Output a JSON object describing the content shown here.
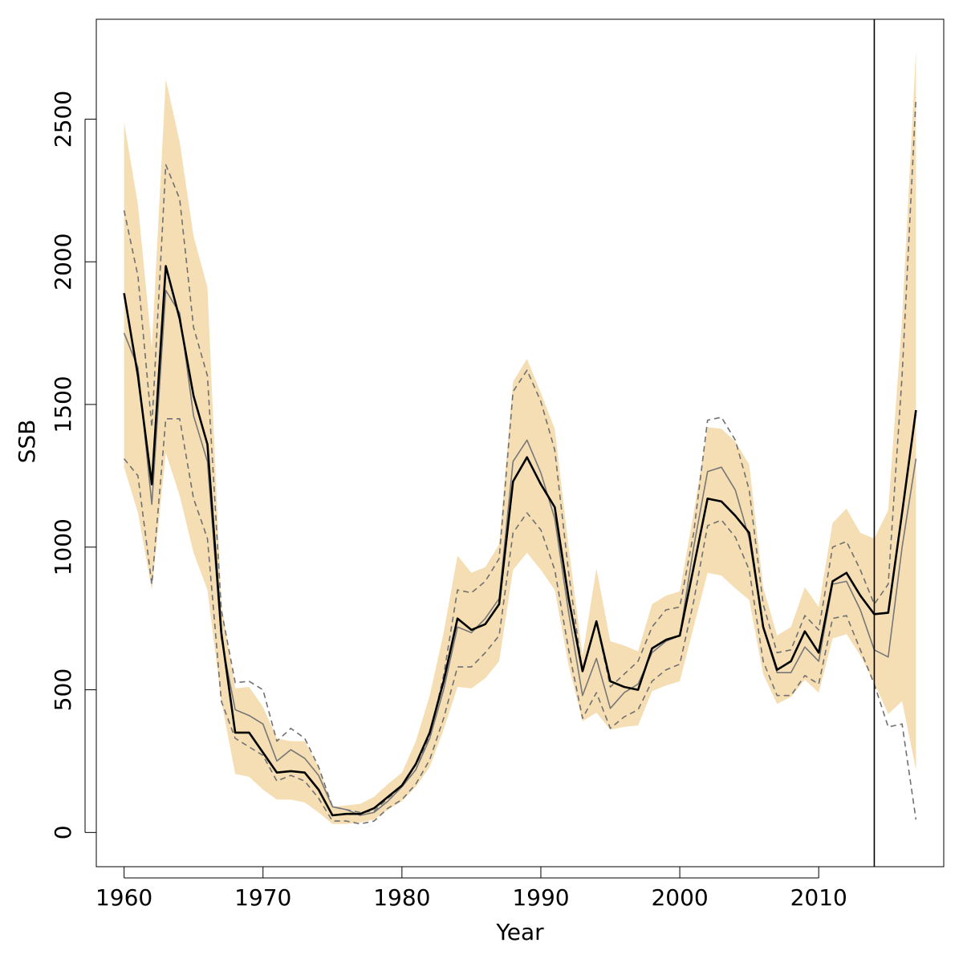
{
  "chart_data": {
    "type": "line",
    "title": "",
    "xlabel": "Year",
    "ylabel": "SSB",
    "xlim": [
      1958,
      2019
    ],
    "ylim": [
      -120,
      2850
    ],
    "x_ticks": [
      "1960",
      "1970",
      "1980",
      "1990",
      "2000",
      "2010"
    ],
    "y_ticks": [
      "0",
      "500",
      "1000",
      "1500",
      "2000",
      "2500"
    ],
    "vline_x": 2014,
    "grid": false,
    "legend": "none",
    "colors": {
      "band": "#f5deb3",
      "main": "#000000",
      "alt": "#777777",
      "dashed": "#707070",
      "vline": "#000000",
      "axis": "#000000"
    },
    "x": [
      1960,
      1961,
      1962,
      1963,
      1964,
      1965,
      1966,
      1967,
      1968,
      1969,
      1970,
      1971,
      1972,
      1973,
      1974,
      1975,
      1976,
      1977,
      1978,
      1979,
      1980,
      1981,
      1982,
      1983,
      1984,
      1985,
      1986,
      1987,
      1988,
      1989,
      1990,
      1991,
      1992,
      1993,
      1994,
      1995,
      1996,
      1997,
      1998,
      1999,
      2000,
      2001,
      2002,
      2003,
      2004,
      2005,
      2006,
      2007,
      2008,
      2009,
      2010,
      2011,
      2012,
      2013,
      2014,
      2015,
      2016,
      2017
    ],
    "series": [
      {
        "values": [
          1890,
          1600,
          1220,
          1985,
          1800,
          1530,
          1360,
          700,
          350,
          350,
          280,
          210,
          215,
          210,
          150,
          60,
          65,
          65,
          85,
          125,
          165,
          240,
          350,
          530,
          750,
          710,
          730,
          800,
          1230,
          1315,
          1220,
          1140,
          820,
          565,
          740,
          530,
          510,
          500,
          645,
          675,
          690,
          930,
          1170,
          1160,
          1110,
          1050,
          720,
          570,
          600,
          705,
          630,
          880,
          910,
          830,
          765,
          770,
          1120,
          1480
        ]
      },
      {
        "values": [
          1750,
          1630,
          1150,
          1900,
          1820,
          1460,
          1300,
          680,
          430,
          410,
          380,
          250,
          290,
          260,
          200,
          90,
          80,
          60,
          70,
          110,
          160,
          220,
          330,
          500,
          720,
          700,
          750,
          820,
          1300,
          1375,
          1260,
          1100,
          770,
          480,
          610,
          435,
          490,
          520,
          630,
          670,
          690,
          1000,
          1265,
          1280,
          1200,
          1030,
          720,
          560,
          560,
          650,
          600,
          870,
          880,
          780,
          640,
          615,
          1000,
          1310
        ]
      },
      {
        "values": [
          2180,
          1950,
          1420,
          2340,
          2220,
          1770,
          1600,
          780,
          525,
          530,
          500,
          320,
          365,
          330,
          230,
          90,
          80,
          70,
          75,
          120,
          160,
          220,
          340,
          550,
          850,
          840,
          880,
          960,
          1545,
          1620,
          1510,
          1340,
          910,
          560,
          740,
          510,
          555,
          600,
          720,
          780,
          790,
          1050,
          1445,
          1455,
          1375,
          1200,
          800,
          630,
          640,
          760,
          710,
          1000,
          1020,
          920,
          800,
          870,
          1600,
          2575
        ]
      },
      {
        "values": [
          1310,
          1250,
          870,
          1450,
          1450,
          1170,
          1030,
          460,
          330,
          300,
          270,
          180,
          200,
          180,
          120,
          40,
          40,
          30,
          40,
          85,
          115,
          170,
          255,
          400,
          580,
          580,
          630,
          690,
          1050,
          1120,
          1060,
          920,
          640,
          400,
          490,
          365,
          405,
          430,
          530,
          570,
          590,
          810,
          1075,
          1095,
          1035,
          920,
          600,
          480,
          480,
          550,
          520,
          750,
          760,
          640,
          520,
          370,
          380,
          45
        ]
      }
    ],
    "band_upper": [
      2490,
      2200,
      1700,
      2640,
      2420,
      2090,
      1910,
      800,
      505,
      510,
      440,
      330,
      320,
      320,
      230,
      90,
      95,
      100,
      125,
      170,
      210,
      320,
      480,
      700,
      970,
      910,
      930,
      1010,
      1580,
      1660,
      1540,
      1415,
      1000,
      620,
      925,
      670,
      655,
      635,
      800,
      830,
      845,
      1120,
      1420,
      1415,
      1370,
      1290,
      860,
      690,
      720,
      860,
      790,
      1085,
      1135,
      1050,
      1030,
      1130,
      1800,
      2740
    ],
    "band_lower": [
      1280,
      1120,
      850,
      1330,
      1180,
      980,
      850,
      460,
      205,
      195,
      150,
      115,
      115,
      105,
      70,
      30,
      30,
      35,
      45,
      80,
      110,
      160,
      230,
      360,
      510,
      505,
      540,
      600,
      920,
      980,
      920,
      850,
      585,
      390,
      420,
      360,
      370,
      375,
      495,
      515,
      530,
      720,
      910,
      900,
      855,
      815,
      555,
      450,
      475,
      535,
      490,
      680,
      695,
      620,
      525,
      415,
      460,
      220
    ]
  }
}
